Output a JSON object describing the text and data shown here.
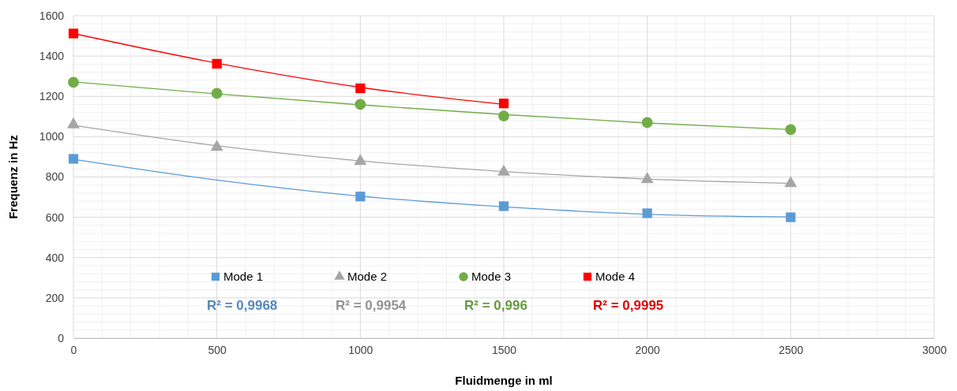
{
  "chart_data": {
    "type": "scatter",
    "xlabel": "Fluidmenge in ml",
    "ylabel": "Frequenz in Hz",
    "xlim": [
      0,
      3000
    ],
    "xticks": [
      0,
      500,
      1000,
      1500,
      2000,
      2500,
      3000
    ],
    "ylim": [
      0,
      1600
    ],
    "yticks": [
      0,
      200,
      400,
      600,
      800,
      1000,
      1200,
      1400,
      1600
    ],
    "grid": true,
    "legend": "bottom",
    "series": [
      {
        "name": "Mode 1",
        "color": "#5b9bd5",
        "marker": "square",
        "x": [
          0,
          1000,
          1500,
          2000,
          2500
        ],
        "values": [
          890,
          703,
          655,
          620,
          600
        ]
      },
      {
        "name": "Mode 2",
        "color": "#a5a5a5",
        "marker": "triangle",
        "x": [
          0,
          500,
          1000,
          1500,
          2000,
          2500
        ],
        "values": [
          1060,
          948,
          878,
          825,
          788,
          768
        ]
      },
      {
        "name": "Mode 3",
        "color": "#70ad47",
        "marker": "circle",
        "x": [
          0,
          500,
          1000,
          1500,
          2000,
          2500
        ],
        "values": [
          1270,
          1215,
          1160,
          1103,
          1070,
          1035
        ]
      },
      {
        "name": "Mode 4",
        "color": "#ff0000",
        "marker": "square",
        "x": [
          0,
          500,
          1000,
          1500
        ],
        "values": [
          1512,
          1362,
          1240,
          1165
        ]
      },
      {
        "type": "line",
        "color": "#5b9bd5",
        "x": [
          0,
          500,
          1000,
          1500,
          2000,
          2500
        ],
        "values": [
          888,
          785,
          705,
          652,
          615,
          602
        ]
      },
      {
        "type": "line",
        "color": "#a5a5a5",
        "x": [
          0,
          500,
          1000,
          1500,
          2000,
          2500
        ],
        "values": [
          1057,
          955,
          880,
          827,
          790,
          768
        ]
      },
      {
        "type": "line",
        "color": "#70ad47",
        "x": [
          0,
          500,
          1000,
          1500,
          2000,
          2500
        ],
        "values": [
          1272,
          1212,
          1158,
          1110,
          1068,
          1035
        ]
      },
      {
        "type": "line",
        "color": "#ff0000",
        "x": [
          0,
          500,
          1000,
          1500
        ],
        "values": [
          1512,
          1365,
          1245,
          1160
        ]
      }
    ],
    "annotations": [
      "R² = 0,9968",
      "R² = 0,9954",
      "R² = 0,996",
      "R² = 0,9995"
    ]
  }
}
